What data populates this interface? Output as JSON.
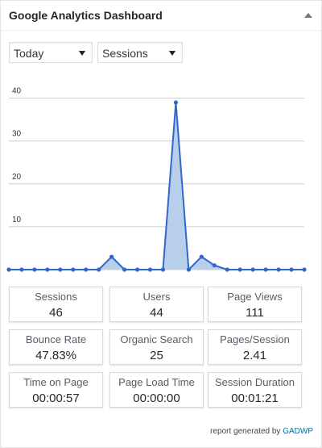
{
  "widget": {
    "title": "Google Analytics Dashboard"
  },
  "controls": {
    "period": "Today",
    "metric": "Sessions"
  },
  "chart_data": {
    "type": "area",
    "x": [
      0,
      1,
      2,
      3,
      4,
      5,
      6,
      7,
      8,
      9,
      10,
      11,
      12,
      13,
      14,
      15,
      16,
      17,
      18,
      19,
      20,
      21,
      22,
      23
    ],
    "series": [
      {
        "values": [
          0,
          0,
          0,
          0,
          0,
          0,
          0,
          0,
          3,
          0,
          0,
          0,
          0,
          39,
          0,
          3,
          1,
          0,
          0,
          0,
          0,
          0,
          0,
          0
        ]
      }
    ],
    "yticks": [
      10,
      20,
      30,
      40
    ],
    "ylim": [
      0,
      42
    ],
    "grid": true,
    "color": "#3366cc",
    "fill": "#b7cfea"
  },
  "stats": [
    {
      "label": "Sessions",
      "value": "46"
    },
    {
      "label": "Users",
      "value": "44"
    },
    {
      "label": "Page Views",
      "value": "111"
    },
    {
      "label": "Bounce Rate",
      "value": "47.83%"
    },
    {
      "label": "Organic Search",
      "value": "25"
    },
    {
      "label": "Pages/Session",
      "value": "2.41"
    },
    {
      "label": "Time on Page",
      "value": "00:00:57"
    },
    {
      "label": "Page Load Time",
      "value": "00:00:00"
    },
    {
      "label": "Session Duration",
      "value": "00:01:21"
    }
  ],
  "footer": {
    "text": "report generated by",
    "link": "GADWP"
  }
}
